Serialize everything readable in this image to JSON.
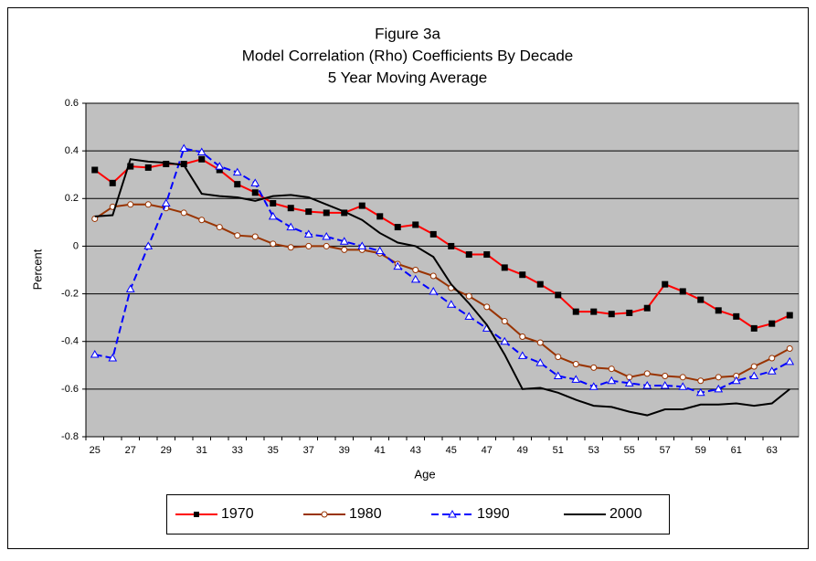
{
  "chart_data": {
    "type": "line",
    "title": [
      "Figure 3a",
      "Model Correlation (Rho) Coefficients By Decade",
      "5 Year Moving Average"
    ],
    "x_label": "Age",
    "y_label": "Percent",
    "categories": [
      "25",
      null,
      "27",
      null,
      "29",
      null,
      "31",
      null,
      "33",
      null,
      "35",
      null,
      "37",
      null,
      "39",
      null,
      "41",
      null,
      "43",
      null,
      "45",
      null,
      "47",
      null,
      "49",
      null,
      "51",
      null,
      "53",
      null,
      "55",
      null,
      "57",
      null,
      "59",
      null,
      "61",
      null,
      "63",
      null
    ],
    "ylim": [
      -0.8,
      0.6
    ],
    "yticks": [
      -0.8,
      -0.6,
      -0.4,
      -0.2,
      0,
      0.2,
      0.4,
      0.6
    ],
    "grid": true,
    "series": [
      {
        "name": "1970",
        "color": "#ff0000",
        "marker": "square",
        "marker_color": "#000000",
        "dash": false,
        "values": [
          0.32,
          0.265,
          0.335,
          0.33,
          0.345,
          0.345,
          0.365,
          0.32,
          0.26,
          0.225,
          0.18,
          0.16,
          0.145,
          0.14,
          0.14,
          0.17,
          0.125,
          0.08,
          0.09,
          0.05,
          0.0,
          -0.035,
          -0.035,
          -0.09,
          -0.12,
          -0.16,
          -0.205,
          -0.275,
          -0.275,
          -0.285,
          -0.28,
          -0.26,
          -0.16,
          -0.19,
          -0.225,
          -0.27,
          -0.295,
          -0.345,
          -0.325,
          -0.29
        ]
      },
      {
        "name": "1980",
        "color": "#993300",
        "marker": "circle",
        "marker_color": "#ffffff",
        "dash": false,
        "values": [
          0.115,
          0.165,
          0.175,
          0.175,
          0.16,
          0.14,
          0.11,
          0.08,
          0.045,
          0.04,
          0.01,
          -0.005,
          0.0,
          0.0,
          -0.015,
          -0.015,
          -0.03,
          -0.075,
          -0.1,
          -0.125,
          -0.175,
          -0.21,
          -0.255,
          -0.315,
          -0.38,
          -0.405,
          -0.465,
          -0.495,
          -0.51,
          -0.515,
          -0.55,
          -0.535,
          -0.545,
          -0.55,
          -0.565,
          -0.55,
          -0.545,
          -0.505,
          -0.47,
          -0.43
        ]
      },
      {
        "name": "1990",
        "color": "#0000ff",
        "marker": "triangle",
        "marker_color": "#ffffff",
        "dash": true,
        "values": [
          -0.455,
          -0.47,
          -0.18,
          0.0,
          0.18,
          0.41,
          0.395,
          0.335,
          0.31,
          0.265,
          0.125,
          0.08,
          0.05,
          0.04,
          0.02,
          0.0,
          -0.02,
          -0.085,
          -0.14,
          -0.19,
          -0.245,
          -0.295,
          -0.345,
          -0.4,
          -0.46,
          -0.49,
          -0.545,
          -0.56,
          -0.59,
          -0.565,
          -0.575,
          -0.585,
          -0.585,
          -0.59,
          -0.615,
          -0.6,
          -0.565,
          -0.545,
          -0.525,
          -0.485
        ]
      },
      {
        "name": "2000",
        "color": "#000000",
        "marker": "none",
        "marker_color": "#000000",
        "dash": false,
        "values": [
          0.125,
          0.13,
          0.365,
          0.355,
          0.35,
          0.34,
          0.22,
          0.21,
          0.205,
          0.19,
          0.21,
          0.215,
          0.205,
          0.175,
          0.145,
          0.11,
          0.055,
          0.015,
          0.0,
          -0.045,
          -0.16,
          -0.24,
          -0.33,
          -0.455,
          -0.6,
          -0.595,
          -0.615,
          -0.645,
          -0.67,
          -0.675,
          -0.695,
          -0.71,
          -0.685,
          -0.685,
          -0.665,
          -0.665,
          -0.66,
          -0.67,
          -0.66,
          -0.6
        ]
      }
    ]
  }
}
